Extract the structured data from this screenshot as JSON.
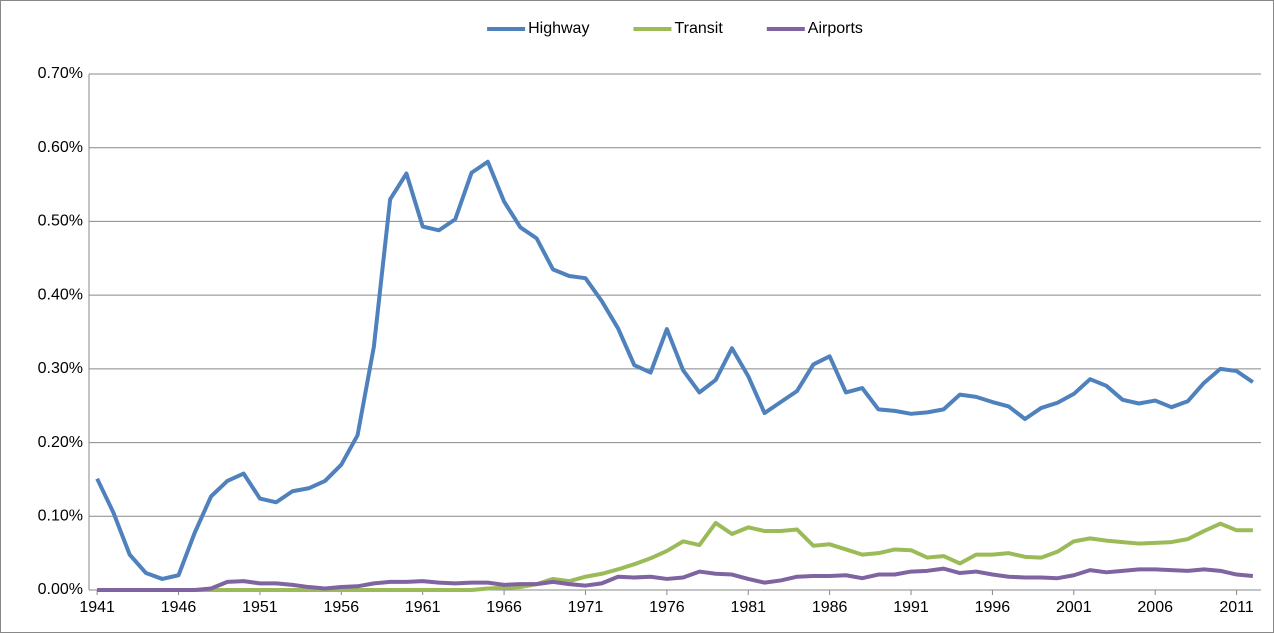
{
  "chart_data": {
    "type": "line",
    "x": [
      1941,
      1942,
      1943,
      1944,
      1945,
      1946,
      1947,
      1948,
      1949,
      1950,
      1951,
      1952,
      1953,
      1954,
      1955,
      1956,
      1957,
      1958,
      1959,
      1960,
      1961,
      1962,
      1963,
      1964,
      1965,
      1966,
      1967,
      1968,
      1969,
      1970,
      1971,
      1972,
      1973,
      1974,
      1975,
      1976,
      1977,
      1978,
      1979,
      1980,
      1981,
      1982,
      1983,
      1984,
      1985,
      1986,
      1987,
      1988,
      1989,
      1990,
      1991,
      1992,
      1993,
      1994,
      1995,
      1996,
      1997,
      1998,
      1999,
      2000,
      2001,
      2002,
      2003,
      2004,
      2005,
      2006,
      2007,
      2008,
      2009,
      2010,
      2011,
      2012
    ],
    "series": [
      {
        "name": "Highway",
        "color": "#4f81bd",
        "values": [
          0.151,
          0.105,
          0.048,
          0.023,
          0.015,
          0.02,
          0.078,
          0.127,
          0.148,
          0.158,
          0.124,
          0.119,
          0.134,
          0.138,
          0.148,
          0.17,
          0.21,
          0.33,
          0.53,
          0.565,
          0.493,
          0.488,
          0.503,
          0.566,
          0.581,
          0.527,
          0.492,
          0.477,
          0.435,
          0.426,
          0.423,
          0.392,
          0.355,
          0.305,
          0.295,
          0.354,
          0.298,
          0.268,
          0.285,
          0.328,
          0.29,
          0.24,
          0.255,
          0.27,
          0.306,
          0.317,
          0.268,
          0.274,
          0.245,
          0.243,
          0.239,
          0.241,
          0.245,
          0.265,
          0.262,
          0.255,
          0.249,
          0.232,
          0.247,
          0.254,
          0.266,
          0.286,
          0.277,
          0.258,
          0.253,
          0.257,
          0.248,
          0.256,
          0.281,
          0.3,
          0.297,
          0.282
        ]
      },
      {
        "name": "Transit",
        "color": "#9bbb59",
        "values": [
          0,
          0,
          0,
          0,
          0,
          0,
          0,
          0,
          0,
          0,
          0,
          0,
          0,
          0,
          0,
          0,
          0,
          0,
          0,
          0,
          0,
          0,
          0,
          0,
          0.002,
          0.003,
          0.004,
          0.008,
          0.015,
          0.012,
          0.018,
          0.022,
          0.028,
          0.035,
          0.043,
          0.053,
          0.066,
          0.061,
          0.091,
          0.076,
          0.085,
          0.08,
          0.08,
          0.082,
          0.06,
          0.062,
          0.055,
          0.048,
          0.05,
          0.055,
          0.054,
          0.044,
          0.046,
          0.036,
          0.048,
          0.048,
          0.05,
          0.045,
          0.044,
          0.052,
          0.066,
          0.07,
          0.067,
          0.065,
          0.063,
          0.064,
          0.065,
          0.069,
          0.08,
          0.09,
          0.081,
          0.081
        ]
      },
      {
        "name": "Airports",
        "color": "#8064a2",
        "values": [
          0,
          0,
          0,
          0,
          0,
          0,
          0,
          0.002,
          0.011,
          0.012,
          0.009,
          0.009,
          0.007,
          0.004,
          0.002,
          0.004,
          0.005,
          0.009,
          0.011,
          0.011,
          0.012,
          0.01,
          0.009,
          0.01,
          0.01,
          0.007,
          0.008,
          0.008,
          0.011,
          0.008,
          0.006,
          0.009,
          0.018,
          0.017,
          0.018,
          0.015,
          0.017,
          0.025,
          0.022,
          0.021,
          0.015,
          0.01,
          0.013,
          0.018,
          0.019,
          0.019,
          0.02,
          0.016,
          0.021,
          0.021,
          0.025,
          0.026,
          0.029,
          0.023,
          0.025,
          0.021,
          0.018,
          0.017,
          0.017,
          0.016,
          0.02,
          0.027,
          0.024,
          0.026,
          0.028,
          0.028,
          0.027,
          0.026,
          0.028,
          0.026,
          0.021,
          0.019
        ]
      }
    ],
    "xlim": [
      1940.5,
      2012.5
    ],
    "xticks": [
      1941,
      1946,
      1951,
      1956,
      1961,
      1966,
      1971,
      1976,
      1981,
      1986,
      1991,
      1996,
      2001,
      2006,
      2011
    ],
    "ylim": [
      0,
      0.7
    ],
    "yticks": [
      {
        "value": 0,
        "label": "0.00%"
      },
      {
        "value": 0.1,
        "label": "0.10%"
      },
      {
        "value": 0.2,
        "label": "0.20%"
      },
      {
        "value": 0.3,
        "label": "0.30%"
      },
      {
        "value": 0.4,
        "label": "0.40%"
      },
      {
        "value": 0.5,
        "label": "0.50%"
      },
      {
        "value": 0.6,
        "label": "0.60%"
      },
      {
        "value": 0.7,
        "label": "0.70%"
      }
    ],
    "grid": true,
    "legend": "top"
  }
}
